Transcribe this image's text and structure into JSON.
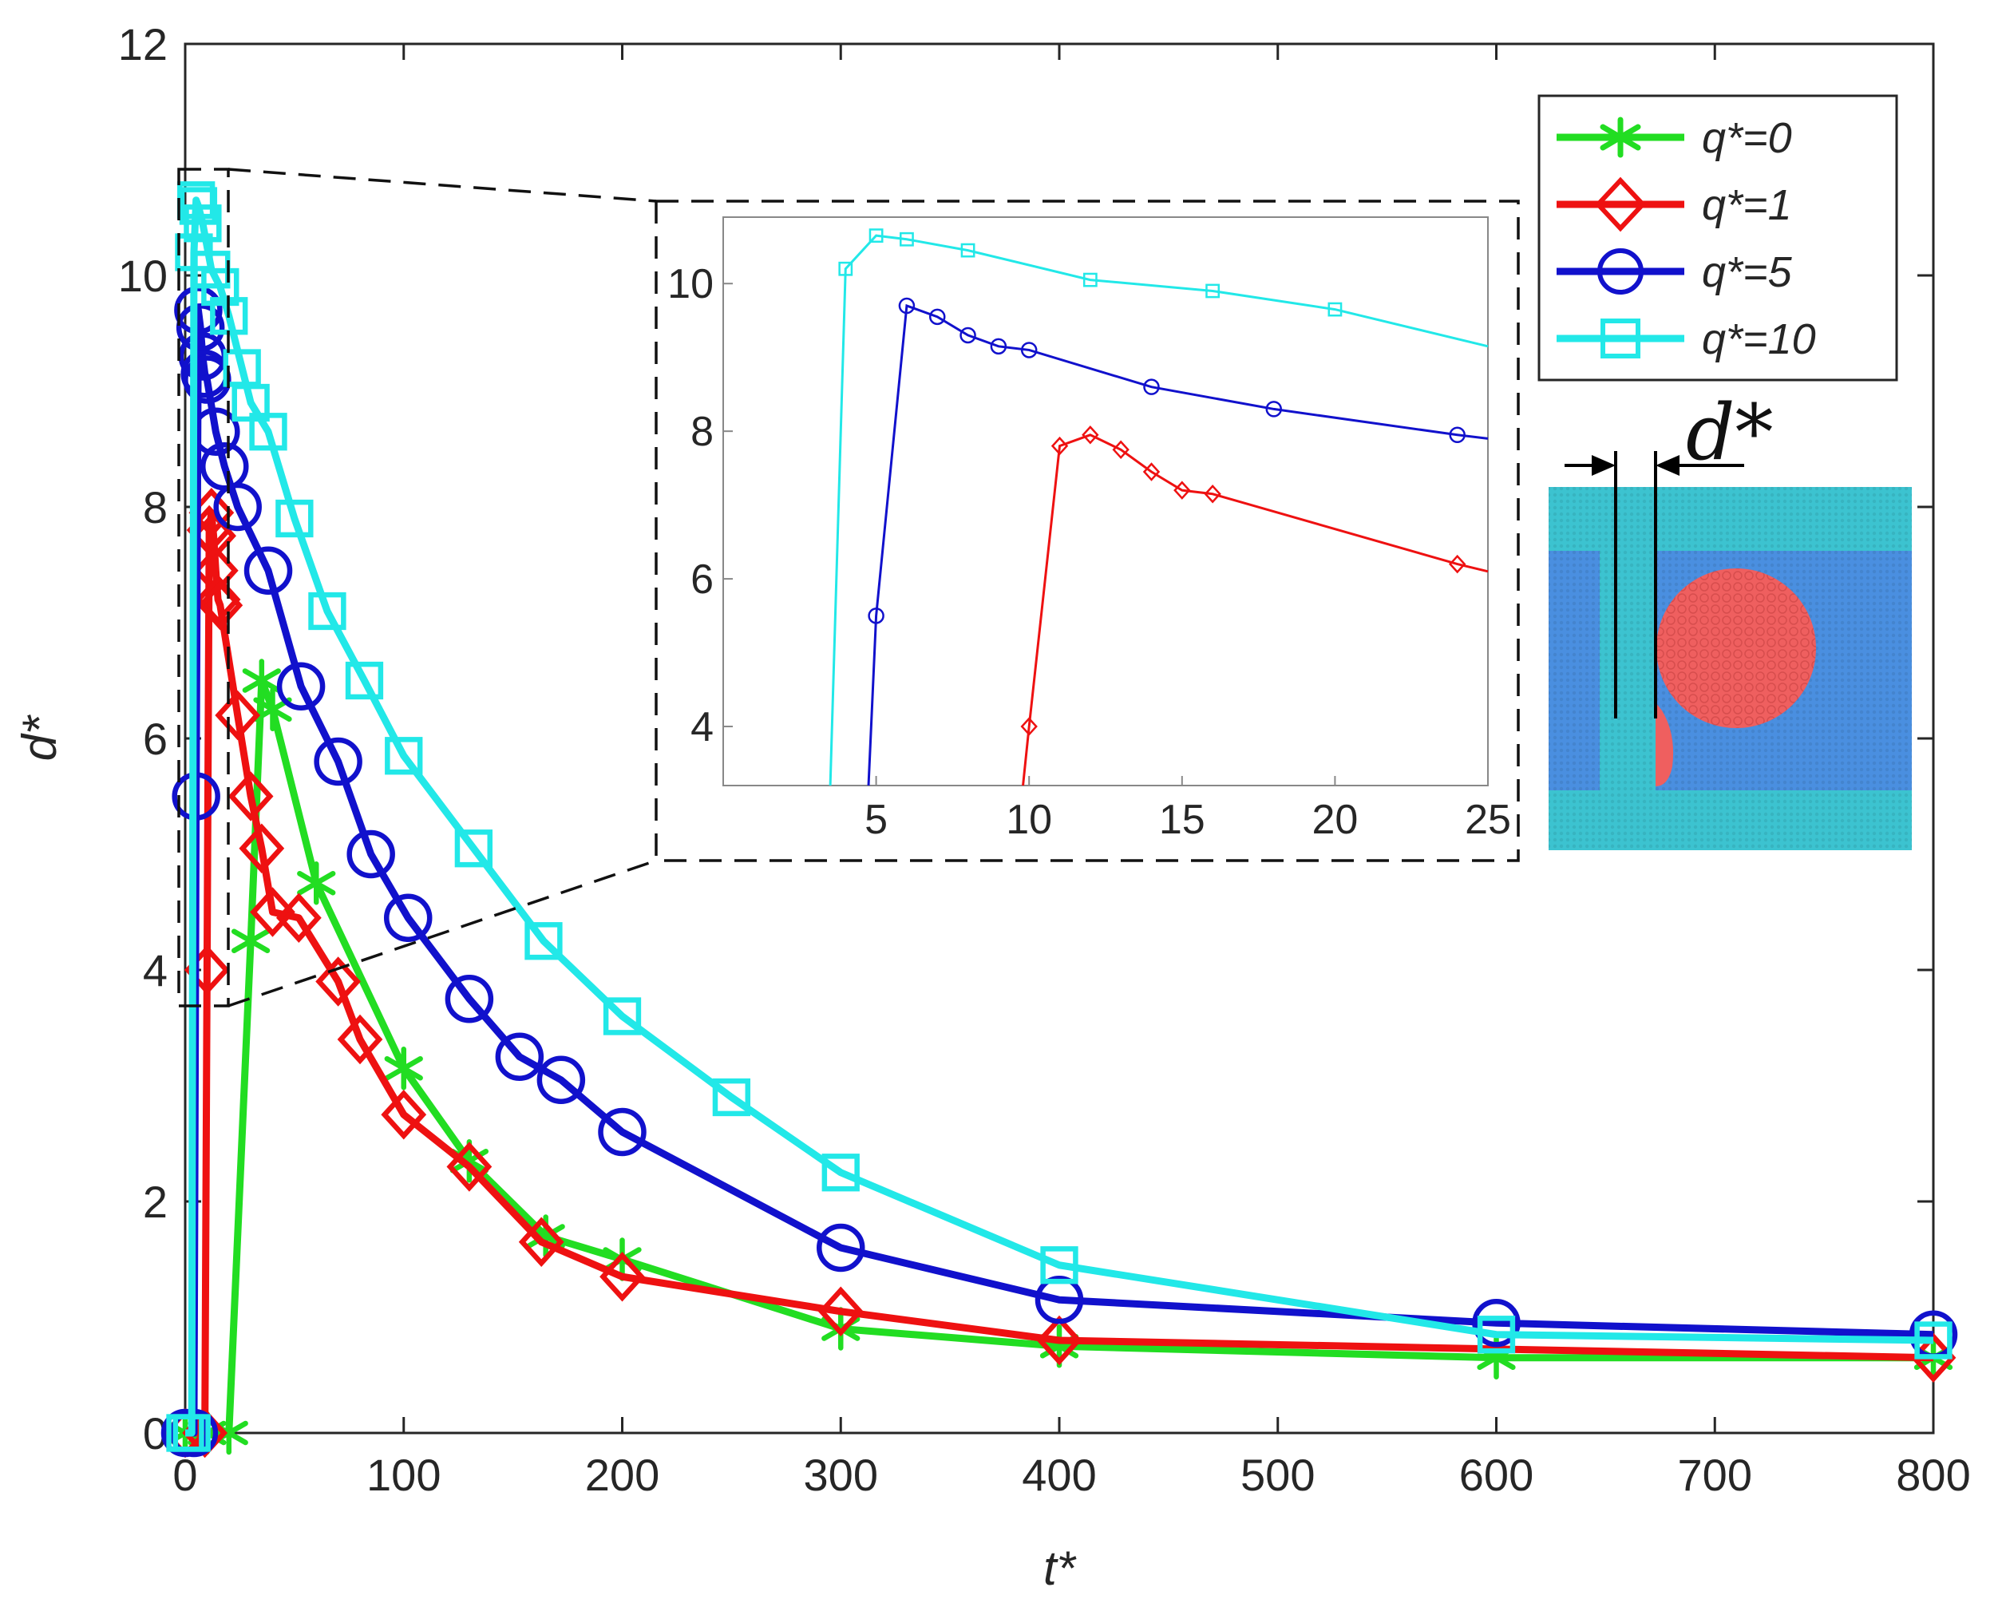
{
  "chart_data": [
    {
      "type": "line",
      "role": "main",
      "xlabel": "t*",
      "ylabel": "d*",
      "xlim": [
        0,
        800
      ],
      "ylim": [
        0,
        12
      ],
      "xticks": [
        0,
        100,
        200,
        300,
        400,
        500,
        600,
        700,
        800
      ],
      "yticks": [
        0,
        2,
        4,
        6,
        8,
        10,
        12
      ],
      "grid": false,
      "legend_position": "top-right",
      "series": [
        {
          "name": "q*=0",
          "color": "#22dd22",
          "marker": "asterisk",
          "x": [
            0,
            10,
            20,
            30,
            35,
            40,
            60,
            100,
            130,
            165,
            200,
            300,
            400,
            600,
            800
          ],
          "y": [
            0,
            0,
            0,
            4.25,
            6.5,
            6.25,
            4.75,
            3.15,
            2.35,
            1.7,
            1.5,
            0.9,
            0.75,
            0.65,
            0.65
          ]
        },
        {
          "name": "q*=1",
          "color": "#ee1111",
          "marker": "diamond",
          "x": [
            0,
            9,
            10,
            11,
            12,
            13,
            14,
            15,
            16,
            24,
            30,
            35,
            40,
            52,
            70,
            80,
            100,
            130,
            163,
            200,
            300,
            400,
            800
          ],
          "y": [
            0,
            0,
            4.0,
            7.8,
            7.95,
            7.75,
            7.45,
            7.2,
            7.15,
            6.2,
            5.5,
            5.05,
            4.5,
            4.45,
            3.9,
            3.4,
            2.75,
            2.3,
            1.65,
            1.35,
            1.05,
            0.8,
            0.65
          ]
        },
        {
          "name": "q*=5",
          "color": "#1111cc",
          "marker": "circle",
          "x": [
            0,
            4,
            5,
            6,
            7,
            8,
            9,
            10,
            14,
            18,
            24,
            38,
            53,
            70,
            85,
            102,
            130,
            153,
            172,
            200,
            300,
            400,
            600,
            800
          ],
          "y": [
            0,
            0,
            5.5,
            9.7,
            9.55,
            9.3,
            9.15,
            9.1,
            8.65,
            8.35,
            8.0,
            7.45,
            6.45,
            5.8,
            5.0,
            4.45,
            3.75,
            3.25,
            3.05,
            2.6,
            1.6,
            1.15,
            0.95,
            0.85
          ]
        },
        {
          "name": "q*=10",
          "color": "#22e8e8",
          "marker": "square",
          "x": [
            0,
            3,
            4,
            5,
            6,
            8,
            12,
            16,
            20,
            26,
            30,
            38,
            50,
            65,
            82,
            100,
            132,
            164,
            200,
            250,
            300,
            400,
            600,
            800
          ],
          "y": [
            0,
            0,
            10.2,
            10.65,
            10.6,
            10.45,
            10.05,
            9.9,
            9.65,
            9.2,
            8.9,
            8.65,
            7.9,
            7.1,
            6.5,
            5.85,
            5.05,
            4.25,
            3.6,
            2.9,
            2.25,
            1.45,
            0.85,
            0.8
          ]
        }
      ]
    },
    {
      "type": "line",
      "role": "inset",
      "xlim": [
        0,
        25
      ],
      "ylim": [
        3.2,
        10.9
      ],
      "xticks": [
        5,
        10,
        15,
        20,
        25
      ],
      "yticks": [
        4,
        6,
        8,
        10
      ],
      "grid": false,
      "series": [
        {
          "name": "q*=1",
          "color": "#ee1111",
          "marker": "diamond",
          "x": [
            9.8,
            10,
            11,
            12,
            13,
            14,
            15,
            16,
            24,
            25
          ],
          "y": [
            3.2,
            4.0,
            7.8,
            7.95,
            7.75,
            7.45,
            7.2,
            7.15,
            6.2,
            6.1
          ]
        },
        {
          "name": "q*=5",
          "color": "#1111cc",
          "marker": "circle",
          "x": [
            4.75,
            5,
            6,
            7,
            8,
            9,
            10,
            14,
            18,
            24,
            25
          ],
          "y": [
            3.2,
            5.5,
            9.7,
            9.55,
            9.3,
            9.15,
            9.1,
            8.6,
            8.3,
            7.95,
            7.9
          ]
        },
        {
          "name": "q*=10",
          "color": "#22e8e8",
          "marker": "square",
          "x": [
            3.5,
            4,
            5,
            6,
            8,
            12,
            16,
            20,
            25
          ],
          "y": [
            3.2,
            10.2,
            10.65,
            10.6,
            10.45,
            10.05,
            9.9,
            9.65,
            9.15
          ]
        }
      ]
    }
  ],
  "legend": {
    "entries": [
      "q*=0",
      "q*=1",
      "q*=5",
      "q*=10"
    ]
  },
  "schematic": {
    "label": "d*",
    "colors": {
      "channel_wall": "#3cc3d0",
      "channel_fluid": "#4a8fe0",
      "droplet": "#ef5f5f"
    }
  }
}
